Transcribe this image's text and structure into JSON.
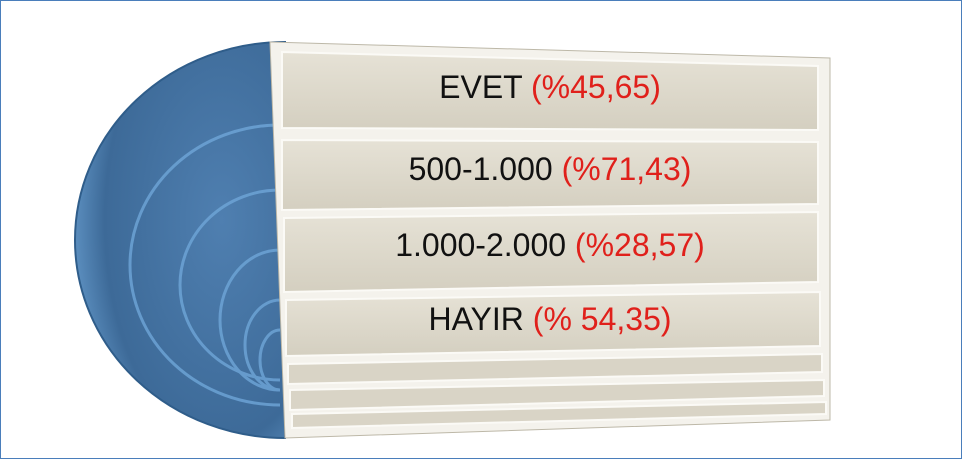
{
  "items": [
    {
      "label": "EVET",
      "percent": "(%45,65)"
    },
    {
      "label": "500-1.000",
      "percent": "(%71,43)"
    },
    {
      "label": "1.000-2.000",
      "percent": "(%28,57)"
    },
    {
      "label": "HAYIR",
      "percent": "(% 54,35)"
    }
  ]
}
